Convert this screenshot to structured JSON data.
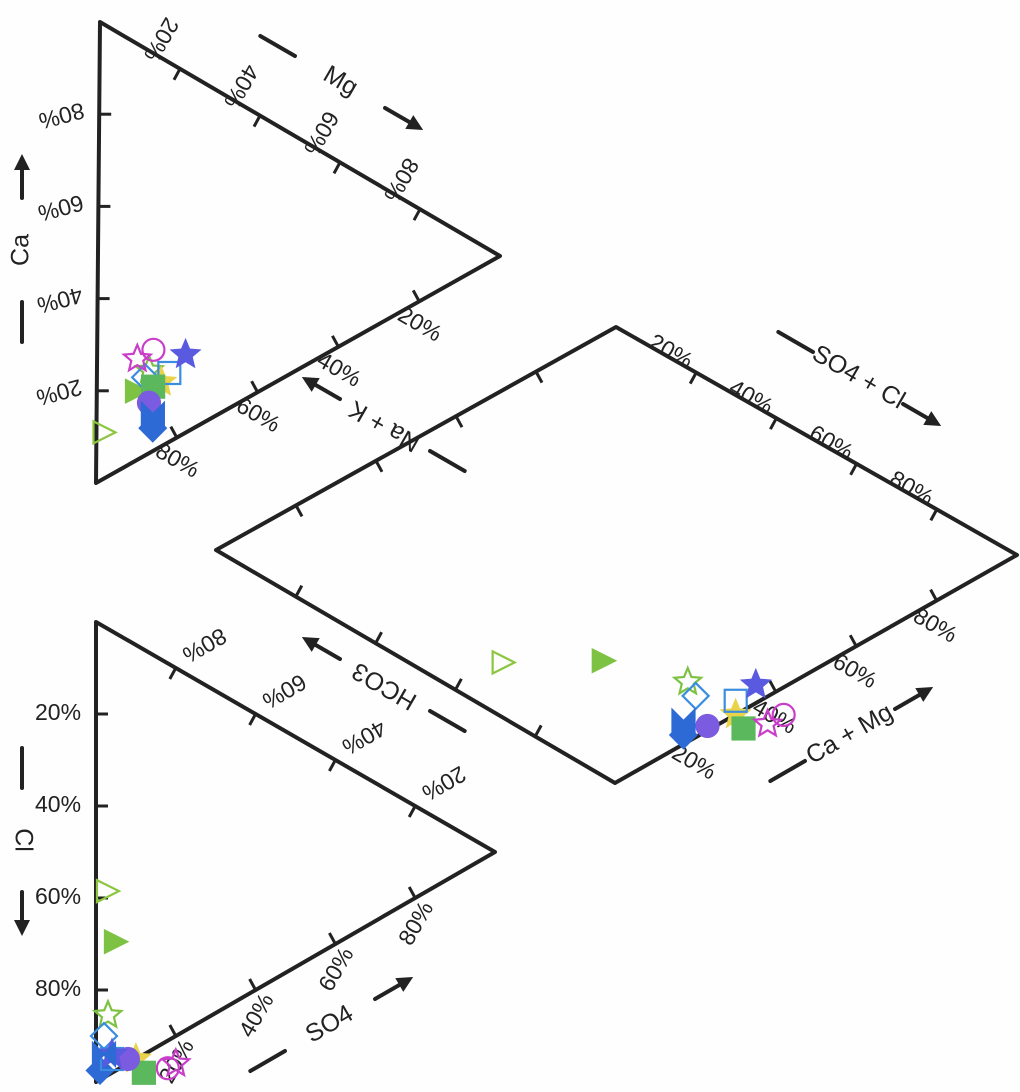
{
  "chart_data": {
    "type": "scatter",
    "subtype": "piper-diagram",
    "axis_labels": {
      "mg": "Mg",
      "ca": "Ca",
      "nak": "Na + K",
      "so4cl": "SO4 + Cl",
      "hco3": "HCO3",
      "camg": "Ca + Mg",
      "cl": "Cl",
      "so4": "SO4"
    },
    "tick_labels": {
      "ca": [
        "80%",
        "60%",
        "40%",
        "20%"
      ],
      "mg": [
        "20%",
        "40%",
        "60%",
        "80%"
      ],
      "nak": [
        "20%",
        "40%",
        "60%",
        "80%"
      ],
      "so4cl": [
        "20%",
        "40%",
        "60%",
        "80%"
      ],
      "camg": [
        "20%",
        "40%",
        "60%",
        "80%"
      ],
      "hco3": [
        "80%",
        "60%",
        "40%",
        "20%"
      ],
      "cl": [
        "20%",
        "40%",
        "60%",
        "80%"
      ],
      "so4": [
        "20%",
        "40%",
        "60%",
        "80%"
      ]
    },
    "series": [
      {
        "marker": "triangle-open",
        "color": "#8cc63f",
        "cation": {
          "ca": 10,
          "mg": 2
        },
        "anion": {
          "cl": 57,
          "so4": 3
        }
      },
      {
        "marker": "triangle-filled",
        "color": "#7dc242",
        "cation": {
          "ca": 15,
          "mg": 10
        },
        "anion": {
          "cl": 67,
          "so4": 5
        }
      },
      {
        "marker": "star-open",
        "color": "#7dc242",
        "cation": {
          "ca": 18,
          "mg": 13
        },
        "anion": {
          "cl": 84,
          "so4": 3
        }
      },
      {
        "marker": "star-filled",
        "color": "#e8d34a",
        "cation": {
          "ca": 14,
          "mg": 16
        },
        "anion": {
          "cl": 90,
          "so4": 10
        }
      },
      {
        "marker": "diamond-open",
        "color": "#3b8de0",
        "cation": {
          "ca": 17,
          "mg": 12
        },
        "anion": {
          "cl": 89,
          "so4": 2
        }
      },
      {
        "marker": "diamond-filled",
        "color": "#2d6ad6",
        "cation": {
          "ca": 5,
          "mg": 14
        },
        "anion": {
          "cl": 97,
          "so4": 1
        }
      },
      {
        "marker": "square-open",
        "color": "#3b8de0",
        "cation": {
          "ca": 15,
          "mg": 18
        },
        "anion": {
          "cl": 93,
          "so4": 4
        }
      },
      {
        "marker": "square-filled",
        "color": "#5cb85c",
        "cation": {
          "ca": 14,
          "mg": 14
        },
        "anion": {
          "cl": 92,
          "so4": 12
        }
      },
      {
        "marker": "circle-open",
        "color": "#c93ec9",
        "cation": {
          "ca": 22,
          "mg": 14
        },
        "anion": {
          "cl": 88,
          "so4": 18
        }
      },
      {
        "marker": "circle-filled",
        "color": "#7b5be0",
        "cation": {
          "ca": 11,
          "mg": 13
        },
        "anion": {
          "cl": 91,
          "so4": 8
        }
      },
      {
        "marker": "star-open",
        "color": "#c93ec9",
        "cation": {
          "ca": 22,
          "mg": 10
        },
        "anion": {
          "cl": 86,
          "so4": 20
        }
      },
      {
        "marker": "star-filled",
        "color": "#5a5ae0",
        "cation": {
          "ca": 17,
          "mg": 22
        },
        "anion": {
          "cl": 92,
          "so4": 4
        }
      },
      {
        "marker": "bowtie-filled",
        "color": "#2d6ad6",
        "cation": {
          "ca": 8,
          "mg": 14
        },
        "anion": {
          "cl": 93,
          "so4": 2
        }
      }
    ]
  }
}
